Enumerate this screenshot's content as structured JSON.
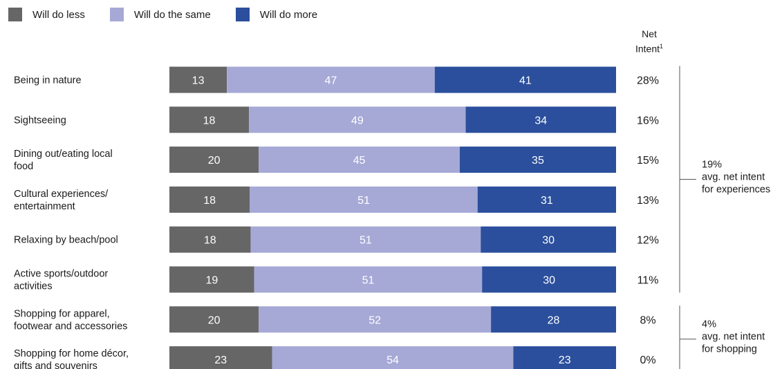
{
  "legend": {
    "less": "Will do less",
    "same": "Will do the same",
    "more": "Will do more"
  },
  "net_header": {
    "line1": "Net",
    "line2": "Intent",
    "footnote": "1"
  },
  "colors": {
    "less": "#666666",
    "same": "#a6a9d6",
    "more": "#2b4f9c",
    "bracket": "#555555"
  },
  "chart_data": {
    "type": "bar",
    "orientation": "horizontal",
    "stacked": true,
    "categories": [
      [
        "Being in nature"
      ],
      [
        "Sightseeing"
      ],
      [
        "Dining out/eating local",
        "food"
      ],
      [
        "Cultural experiences/",
        "entertainment"
      ],
      [
        "Relaxing by beach/pool"
      ],
      [
        "Active sports/outdoor",
        "activities"
      ],
      [
        "Shopping for apparel,",
        "footwear and accessories"
      ],
      [
        "Shopping for home décor,",
        "gifts and souvenirs"
      ]
    ],
    "series": [
      {
        "name": "Will do less",
        "key": "less",
        "values": [
          13,
          18,
          20,
          18,
          18,
          19,
          20,
          23
        ]
      },
      {
        "name": "Will do the same",
        "key": "same",
        "values": [
          47,
          49,
          45,
          51,
          51,
          51,
          52,
          54
        ]
      },
      {
        "name": "Will do more",
        "key": "more",
        "values": [
          41,
          34,
          35,
          31,
          30,
          30,
          28,
          23
        ]
      }
    ],
    "net_intent": [
      "28%",
      "16%",
      "15%",
      "13%",
      "12%",
      "11%",
      "8%",
      "0%"
    ],
    "groups": [
      {
        "value": "19%",
        "lines": [
          "avg. net intent",
          "for experiences"
        ],
        "rows": [
          0,
          5
        ]
      },
      {
        "value": "4%",
        "lines": [
          "avg. net intent",
          "for shopping"
        ],
        "rows": [
          6,
          7
        ]
      }
    ]
  }
}
